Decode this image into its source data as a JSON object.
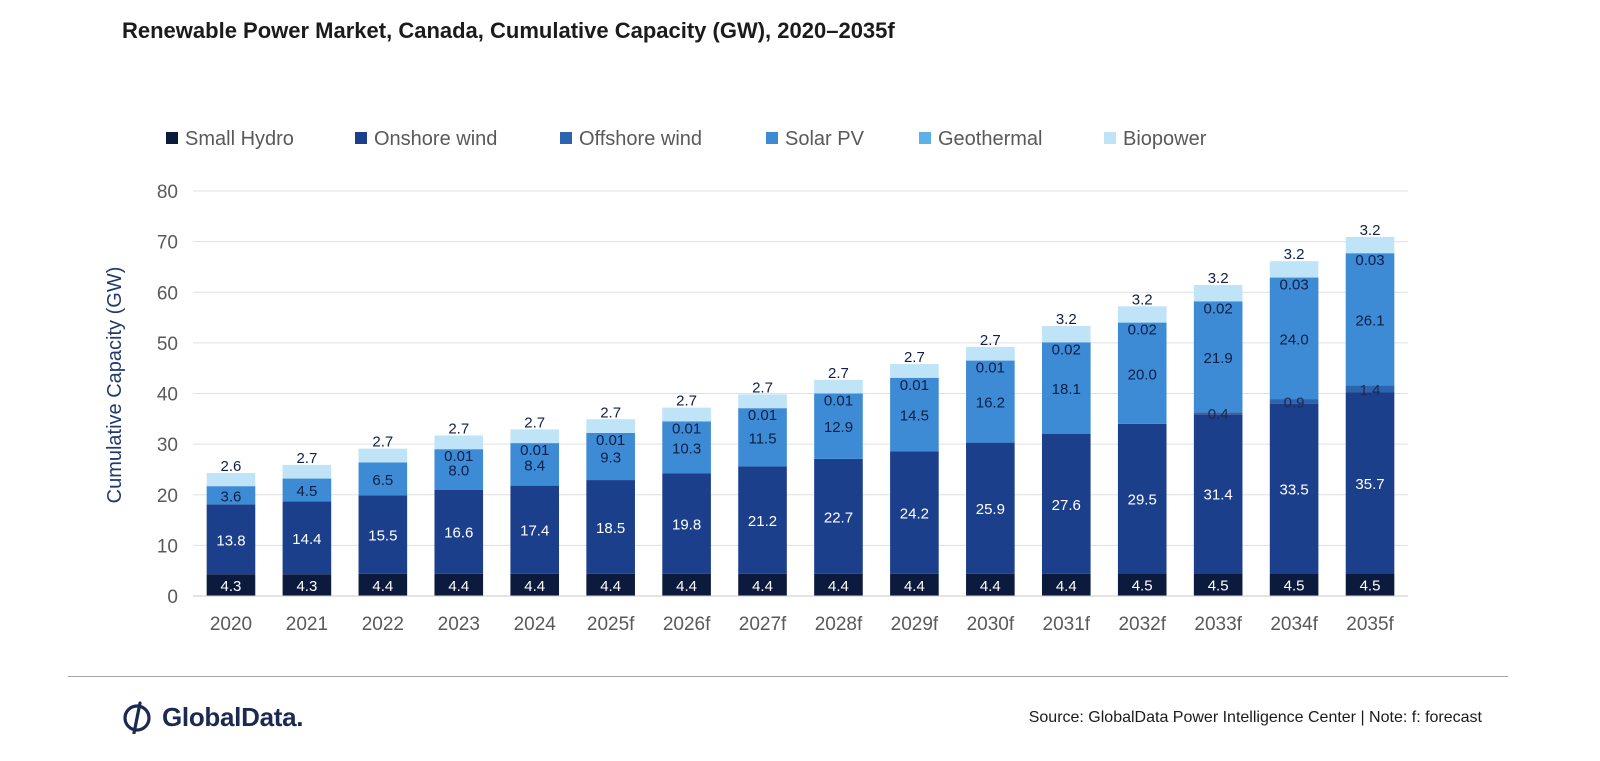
{
  "page": {
    "title": "Renewable Power Market, Canada, Cumulative Capacity (GW), 2020–2035f",
    "brand": "GlobalData.",
    "source": "Source: GlobalData Power Intelligence Center | Note: f: forecast"
  },
  "chart_data": {
    "type": "bar",
    "stacked": true,
    "title": "Renewable Power Market, Canada, Cumulative Capacity (GW), 2020–2035f",
    "ylabel": "Cumulative Capacity (GW)",
    "xlabel": "",
    "ylim": [
      0,
      80
    ],
    "yticks": [
      "0",
      "10",
      "20",
      "30",
      "40",
      "50",
      "60",
      "70",
      "80"
    ],
    "ytick_values": [
      0,
      10,
      20,
      30,
      40,
      50,
      60,
      70,
      80
    ],
    "grid": true,
    "legend_position": "top",
    "categories": [
      "2020",
      "2021",
      "2022",
      "2023",
      "2024",
      "2025f",
      "2026f",
      "2027f",
      "2028f",
      "2029f",
      "2030f",
      "2031f",
      "2032f",
      "2033f",
      "2034f",
      "2035f"
    ],
    "series": [
      {
        "name": "Small Hydro",
        "color": "#0c1a3d",
        "label_color": "#ffffff",
        "values": [
          4.3,
          4.3,
          4.4,
          4.4,
          4.4,
          4.4,
          4.4,
          4.4,
          4.4,
          4.4,
          4.4,
          4.4,
          4.5,
          4.5,
          4.5,
          4.5
        ],
        "labels": [
          "4.3",
          "4.3",
          "4.4",
          "4.4",
          "4.4",
          "4.4",
          "4.4",
          "4.4",
          "4.4",
          "4.4",
          "4.4",
          "4.4",
          "4.5",
          "4.5",
          "4.5",
          "4.5"
        ]
      },
      {
        "name": "Onshore wind",
        "color": "#1b3f8b",
        "label_color": "#ffffff",
        "values": [
          13.8,
          14.4,
          15.5,
          16.6,
          17.4,
          18.5,
          19.8,
          21.2,
          22.7,
          24.2,
          25.9,
          27.6,
          29.5,
          31.4,
          33.5,
          35.7
        ],
        "labels": [
          "13.8",
          "14.4",
          "15.5",
          "16.6",
          "17.4",
          "18.5",
          "19.8",
          "21.2",
          "22.7",
          "24.2",
          "25.9",
          "27.6",
          "29.5",
          "31.4",
          "33.5",
          "35.7"
        ]
      },
      {
        "name": "Offshore wind",
        "color": "#2d64ad",
        "label_color": "#1a2a52",
        "values": [
          0,
          0,
          0,
          0,
          0,
          0,
          0,
          0,
          0,
          0,
          0,
          0,
          0,
          0.4,
          0.9,
          1.4
        ],
        "labels": [
          "",
          "",
          "",
          "",
          "",
          "",
          "",
          "",
          "",
          "",
          "",
          "",
          "",
          "0.4",
          "0.9",
          "1.4"
        ]
      },
      {
        "name": "Solar PV",
        "color": "#3d8ad5",
        "label_color": "#0f1f45",
        "values": [
          3.6,
          4.5,
          6.5,
          8.0,
          8.4,
          9.3,
          10.3,
          11.5,
          12.9,
          14.5,
          16.2,
          18.1,
          20.0,
          21.9,
          24.0,
          26.1
        ],
        "labels": [
          "3.6",
          "4.5",
          "6.5",
          "8.0",
          "8.4",
          "9.3",
          "10.3",
          "11.5",
          "12.9",
          "14.5",
          "16.2",
          "18.1",
          "20.0",
          "21.9",
          "24.0",
          "26.1"
        ]
      },
      {
        "name": "Geothermal",
        "color": "#5cb2e8",
        "label_color": "#0f1f45",
        "values": [
          0,
          0,
          0,
          0.01,
          0.01,
          0.01,
          0.01,
          0.01,
          0.01,
          0.01,
          0.01,
          0.02,
          0.02,
          0.02,
          0.03,
          0.03
        ],
        "labels": [
          "",
          "",
          "",
          "0.01",
          "0.01",
          "0.01",
          "0.01",
          "0.01",
          "0.01",
          "0.01",
          "0.01",
          "0.02",
          "0.02",
          "0.02",
          "0.03",
          "0.03"
        ]
      },
      {
        "name": "Biopower",
        "color": "#bfe3f7",
        "label_color": "#0f1f45",
        "values": [
          2.6,
          2.7,
          2.7,
          2.7,
          2.7,
          2.7,
          2.7,
          2.7,
          2.7,
          2.7,
          2.7,
          3.2,
          3.2,
          3.2,
          3.2,
          3.2
        ],
        "labels": [
          "2.6",
          "2.7",
          "2.7",
          "2.7",
          "2.7",
          "2.7",
          "2.7",
          "2.7",
          "2.7",
          "2.7",
          "2.7",
          "3.2",
          "3.2",
          "3.2",
          "3.2",
          "3.2"
        ]
      }
    ]
  }
}
